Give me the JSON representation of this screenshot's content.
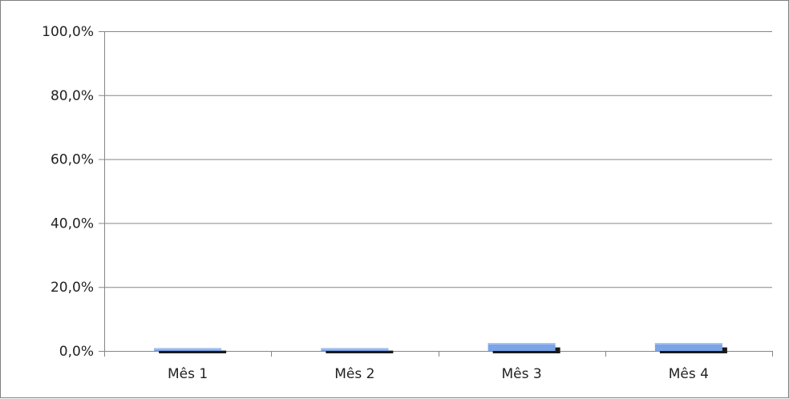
{
  "chart_data": {
    "type": "bar",
    "title": "",
    "xlabel": "",
    "ylabel": "",
    "categories": [
      "Mês 1",
      "Mês 2",
      "Mês 3",
      "Mês 4"
    ],
    "series": [
      {
        "values": [
          0.9,
          0.9,
          2.5,
          2.5
        ],
        "color": "#7ba3e8"
      },
      {
        "values": [
          0.1,
          0.1,
          1.1,
          1.1
        ],
        "color": "#1a1a1a"
      }
    ],
    "ylim": [
      0,
      100
    ],
    "yticks": [
      0,
      20,
      40,
      60,
      80,
      100
    ],
    "ytick_labels": [
      "0,0%",
      "20,0%",
      "40,0%",
      "60,0%",
      "80,0%",
      "100,0%"
    ],
    "grid": true,
    "legend": "none",
    "three_d": true
  },
  "colors": {
    "border": "#7f7f7f",
    "grid": "#868686",
    "bar_front": "#7ba3e8",
    "bar_top": "#a9c3f0",
    "bar_side": "#4a70b0",
    "bar_back": "#1a1a1a"
  }
}
